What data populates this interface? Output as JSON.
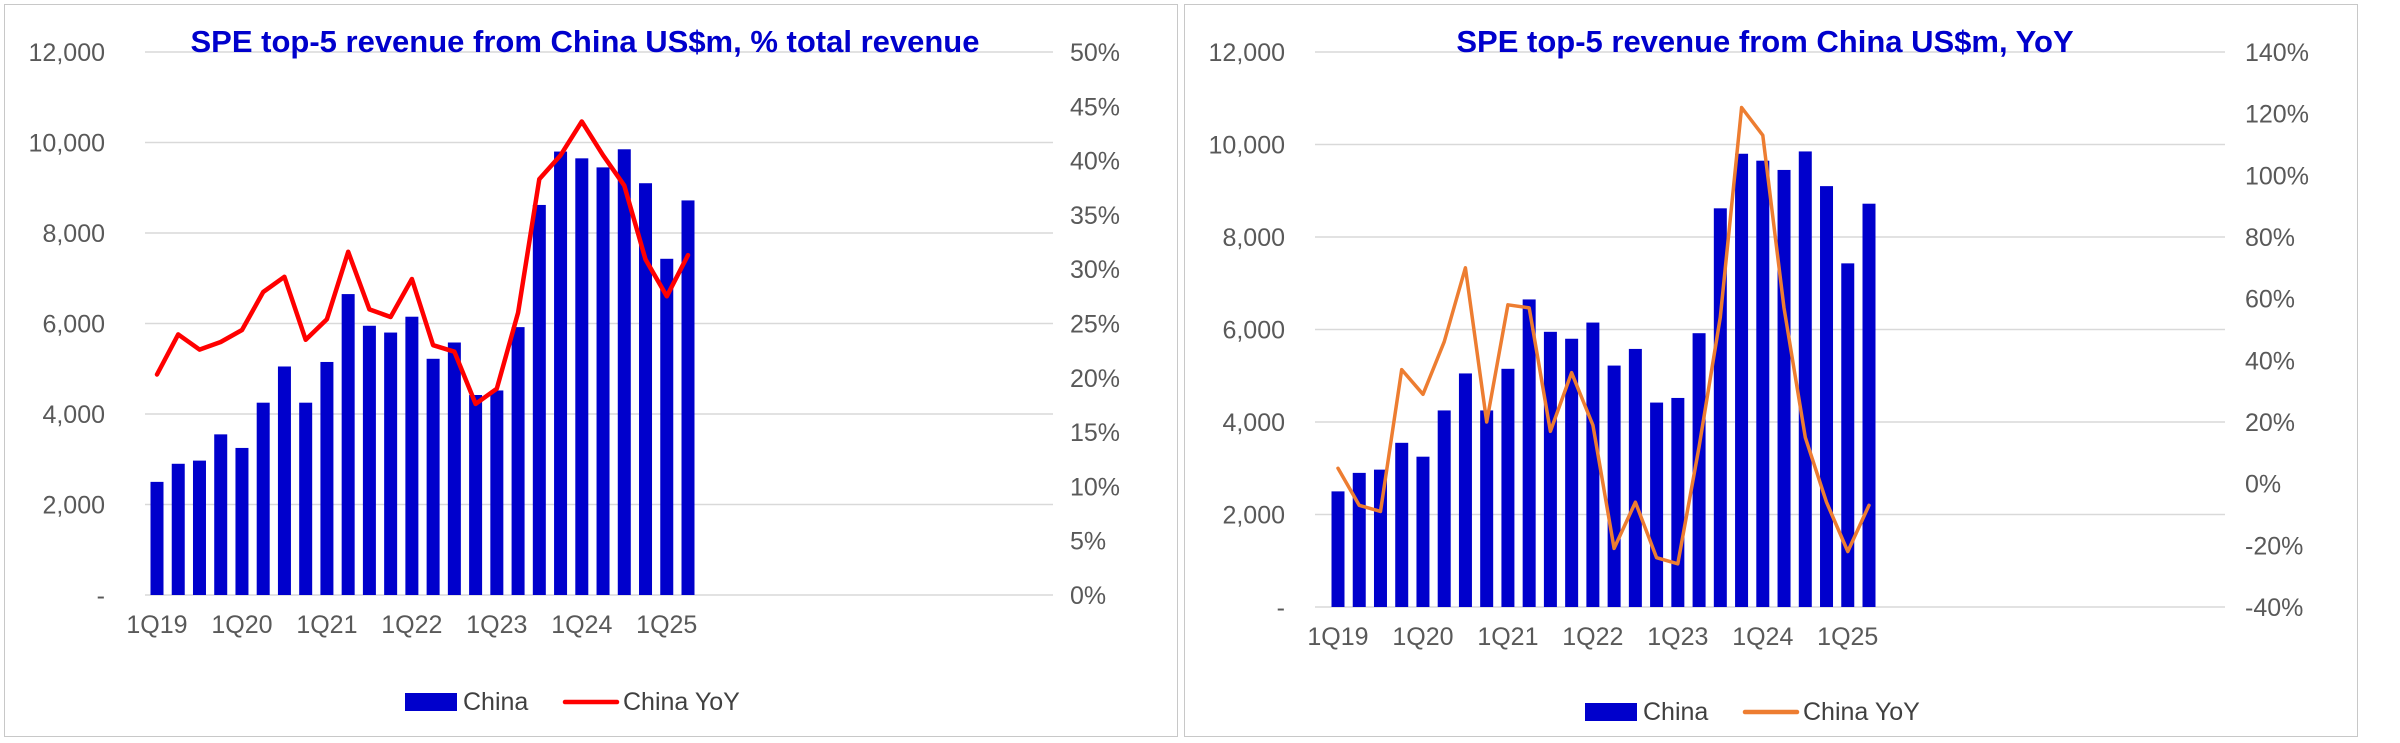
{
  "chart_data": [
    {
      "type": "bar+line",
      "title": "SPE top-5 revenue from China US$m, % total revenue",
      "categories": [
        "1Q19",
        "2Q19",
        "3Q19",
        "4Q19",
        "1Q20",
        "2Q20",
        "3Q20",
        "4Q20",
        "1Q21",
        "2Q21",
        "3Q21",
        "4Q21",
        "1Q22",
        "2Q22",
        "3Q22",
        "4Q22",
        "1Q23",
        "2Q23",
        "3Q23",
        "4Q23",
        "1Q24",
        "2Q24",
        "3Q24",
        "4Q24",
        "1Q25",
        "2Q25"
      ],
      "x_tick_labels": [
        "1Q19",
        "1Q20",
        "1Q21",
        "1Q22",
        "1Q23",
        "1Q24",
        "1Q25"
      ],
      "bar_series": {
        "name": "China",
        "color": "#0000cc",
        "values": [
          2500,
          2900,
          2970,
          3550,
          3250,
          4250,
          5050,
          4250,
          5150,
          6650,
          5950,
          5800,
          6150,
          5220,
          5580,
          4420,
          4520,
          5920,
          8620,
          9800,
          9650,
          9450,
          9850,
          9100,
          7430,
          8720
        ]
      },
      "line_series": {
        "name": "China YoY",
        "color": "#ff0000",
        "values": [
          20.3,
          24.0,
          22.6,
          23.3,
          24.4,
          27.9,
          29.3,
          23.5,
          25.4,
          31.6,
          26.3,
          25.6,
          29.1,
          23.0,
          22.4,
          17.6,
          19.0,
          26.0,
          38.3,
          40.5,
          43.6,
          40.5,
          37.7,
          30.9,
          27.5,
          31.3
        ]
      },
      "y_left": {
        "min": 0,
        "max": 12000,
        "step": 2000,
        "tick_labels": [
          "-",
          "2,000",
          "4,000",
          "6,000",
          "8,000",
          "10,000",
          "12,000"
        ]
      },
      "y_right": {
        "min": 0,
        "max": 50,
        "step": 5,
        "tick_labels": [
          "0%",
          "5%",
          "10%",
          "15%",
          "20%",
          "25%",
          "30%",
          "35%",
          "40%",
          "45%",
          "50%"
        ]
      },
      "grid": "horizontal",
      "legend": {
        "position": "bottom",
        "items": [
          "China",
          "China YoY"
        ]
      }
    },
    {
      "type": "bar+line",
      "title": "SPE top-5 revenue from China US$m, YoY",
      "categories": [
        "1Q19",
        "2Q19",
        "3Q19",
        "4Q19",
        "1Q20",
        "2Q20",
        "3Q20",
        "4Q20",
        "1Q21",
        "2Q21",
        "3Q21",
        "4Q21",
        "1Q22",
        "2Q22",
        "3Q22",
        "4Q22",
        "1Q23",
        "2Q23",
        "3Q23",
        "4Q23",
        "1Q24",
        "2Q24",
        "3Q24",
        "4Q24",
        "1Q25",
        "2Q25"
      ],
      "x_tick_labels": [
        "1Q19",
        "1Q20",
        "1Q21",
        "1Q22",
        "1Q23",
        "1Q24",
        "1Q25"
      ],
      "bar_series": {
        "name": "China",
        "color": "#0000cc",
        "values": [
          2500,
          2900,
          2970,
          3550,
          3250,
          4250,
          5050,
          4250,
          5150,
          6650,
          5950,
          5800,
          6150,
          5220,
          5580,
          4420,
          4520,
          5920,
          8620,
          9800,
          9650,
          9450,
          9850,
          9100,
          7430,
          8720
        ]
      },
      "line_series": {
        "name": "China YoY",
        "color": "#ed7d31",
        "values": [
          5,
          -7,
          -9,
          37,
          29,
          46,
          70,
          20,
          58,
          57,
          17,
          36,
          19,
          -21,
          -6,
          -24,
          -26,
          12,
          54,
          122,
          113,
          57,
          15,
          -6,
          -22,
          -7
        ]
      },
      "y_left": {
        "min": 0,
        "max": 12000,
        "step": 2000,
        "tick_labels": [
          "-",
          "2,000",
          "4,000",
          "6,000",
          "8,000",
          "10,000",
          "12,000"
        ]
      },
      "y_right": {
        "min": -40,
        "max": 140,
        "step": 20,
        "tick_labels": [
          "-40%",
          "-20%",
          "0%",
          "20%",
          "40%",
          "60%",
          "80%",
          "100%",
          "120%",
          "140%"
        ]
      },
      "grid": "horizontal",
      "legend": {
        "position": "bottom",
        "items": [
          "China",
          "China YoY"
        ]
      }
    }
  ]
}
